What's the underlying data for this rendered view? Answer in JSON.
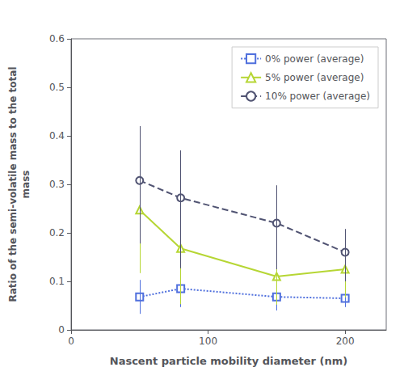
{
  "chart_data": {
    "type": "line",
    "xlabel": "Nascent particle mobility diameter (nm)",
    "ylabel": "Ratio of the semi-volatile mass to the total\nmass",
    "x": [
      50,
      80,
      150,
      200
    ],
    "series": [
      {
        "name": "0% power (average)",
        "values": [
          0.068,
          0.085,
          0.068,
          0.065
        ],
        "yerr_low": [
          0.035,
          0.038,
          0.028,
          0.018
        ],
        "yerr_high": [
          0.035,
          0.038,
          0.028,
          0.018
        ],
        "marker": "square",
        "line_style": "dotted"
      },
      {
        "name": "5% power (average)",
        "values": [
          0.247,
          0.168,
          0.11,
          0.125
        ],
        "yerr_low": [
          0.13,
          0.115,
          0.058,
          0.058
        ],
        "yerr_high": [
          0.13,
          0.195,
          0.085,
          0.058
        ],
        "marker": "triangle",
        "line_style": "solid"
      },
      {
        "name": "10% power (average)",
        "values": [
          0.308,
          0.272,
          0.22,
          0.16
        ],
        "yerr_low": [
          0.13,
          0.145,
          0.095,
          0.06
        ],
        "yerr_high": [
          0.112,
          0.098,
          0.078,
          0.048
        ],
        "marker": "circle",
        "line_style": "dashed"
      }
    ],
    "xlim": [
      0,
      230
    ],
    "ylim": [
      0,
      0.6
    ],
    "xticks": [
      0,
      100,
      200
    ],
    "yticks": [
      0,
      0.1,
      0.2,
      0.3,
      0.4,
      0.5,
      0.6
    ],
    "grid": false,
    "legend": "upper right"
  }
}
